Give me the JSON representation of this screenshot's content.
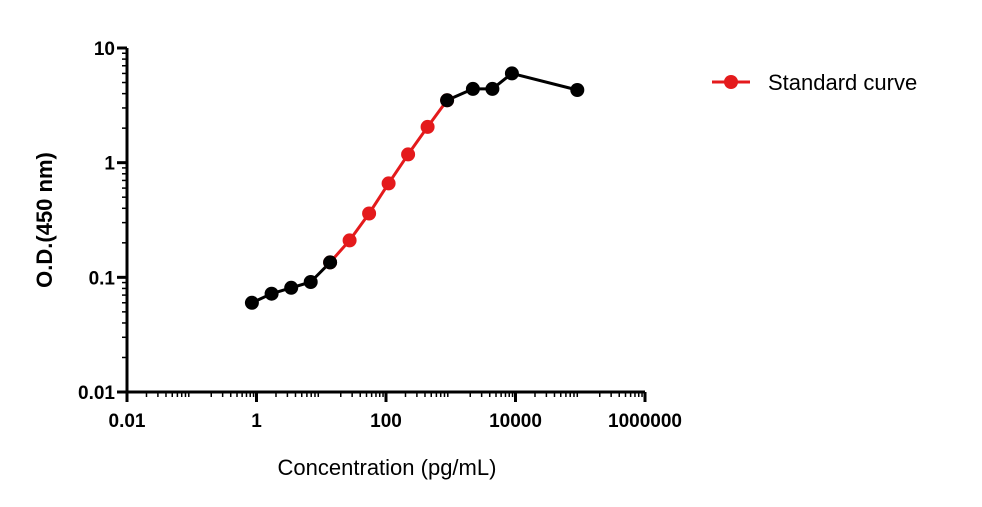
{
  "chart_data": {
    "type": "line",
    "title": "",
    "xlabel": "Concentration (pg/mL)",
    "ylabel": "O.D.(450 nm)",
    "xscale": "log",
    "yscale": "log",
    "xlim": [
      0.01,
      1000000
    ],
    "ylim": [
      0.01,
      10
    ],
    "xticks": [
      "0.01",
      "1",
      "100",
      "10000",
      "1000000"
    ],
    "yticks": [
      "0.01",
      "0.1",
      "1",
      "10"
    ],
    "grid": false,
    "legend_position": "right",
    "series": [
      {
        "name": "Standard curve",
        "color": "#e41a1c",
        "marker": "circle",
        "x": [
          13.7,
          27.4,
          54.9,
          109.8,
          219.5,
          439,
          878
        ],
        "y": [
          0.135,
          0.21,
          0.36,
          0.66,
          1.18,
          2.05,
          3.5
        ]
      },
      {
        "color": "#000000",
        "marker": "circle",
        "x": [
          0.85,
          1.71,
          3.43,
          6.86,
          13.7
        ],
        "y": [
          0.06,
          0.072,
          0.081,
          0.091,
          0.135
        ]
      },
      {
        "color": "#000000",
        "marker": "circle",
        "x": [
          878,
          2200,
          4400,
          8800,
          90000
        ],
        "y": [
          3.5,
          4.4,
          4.4,
          6.0,
          4.3
        ]
      }
    ]
  }
}
